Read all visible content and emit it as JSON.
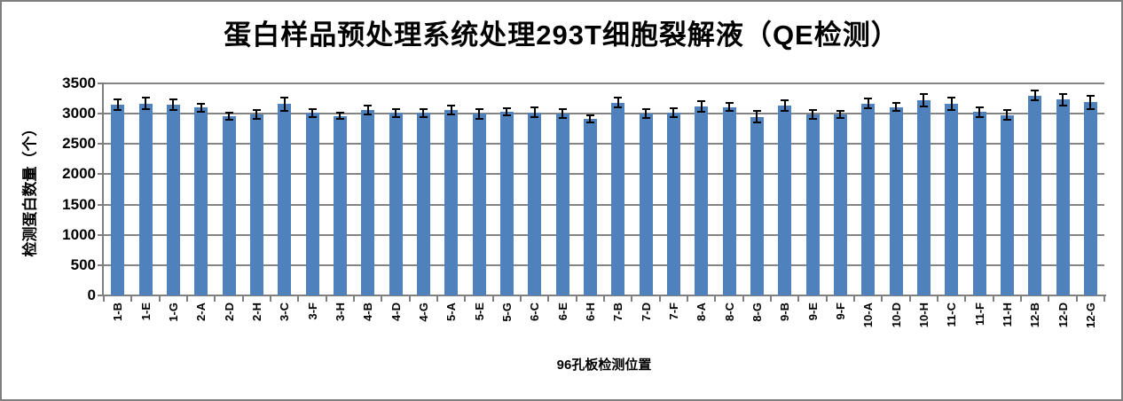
{
  "title": {
    "part1": "蛋白样品预处理系统处理",
    "part2": "293T",
    "part3": "细胞裂解液（",
    "part4": "QE",
    "part5": "检测）"
  },
  "chart_data": {
    "type": "bar",
    "title": "蛋白样品预处理系统处理293T细胞裂解液（QE检测）",
    "xlabel": "96孔板检测位置",
    "ylabel": "检测蛋白数量（个）",
    "ylim": [
      0,
      3500
    ],
    "ytick_step": 500,
    "grid": true,
    "legend": "none",
    "bar_color": "#4F81BD",
    "grid_color": "#848484",
    "axis_color": "#7f7f7f",
    "error_bar_color": "#000000",
    "categories": [
      "1-B",
      "1-E",
      "1-G",
      "2-A",
      "2-D",
      "2-H",
      "3-C",
      "3-F",
      "3-H",
      "4-B",
      "4-D",
      "4-G",
      "5-A",
      "5-E",
      "5-G",
      "6-C",
      "6-E",
      "6-H",
      "7-B",
      "7-D",
      "7-F",
      "8-A",
      "8-C",
      "8-G",
      "9-B",
      "9-E",
      "9-F",
      "10-A",
      "10-D",
      "10-H",
      "11-C",
      "11-F",
      "11-H",
      "12-B",
      "12-D",
      "12-G"
    ],
    "values": [
      3150,
      3170,
      3150,
      3100,
      2960,
      2990,
      3160,
      3010,
      2960,
      3060,
      3010,
      3010,
      3060,
      3000,
      3030,
      3020,
      3000,
      2920,
      3180,
      3000,
      3020,
      3120,
      3110,
      2950,
      3130,
      2990,
      2990,
      3170,
      3110,
      3220,
      3160,
      3030,
      2980,
      3300,
      3230,
      3190
    ],
    "errors": [
      90,
      90,
      90,
      70,
      60,
      70,
      110,
      70,
      50,
      70,
      60,
      70,
      70,
      80,
      60,
      80,
      70,
      60,
      80,
      70,
      70,
      90,
      70,
      90,
      90,
      70,
      60,
      80,
      70,
      100,
      100,
      80,
      80,
      80,
      90,
      110
    ]
  }
}
